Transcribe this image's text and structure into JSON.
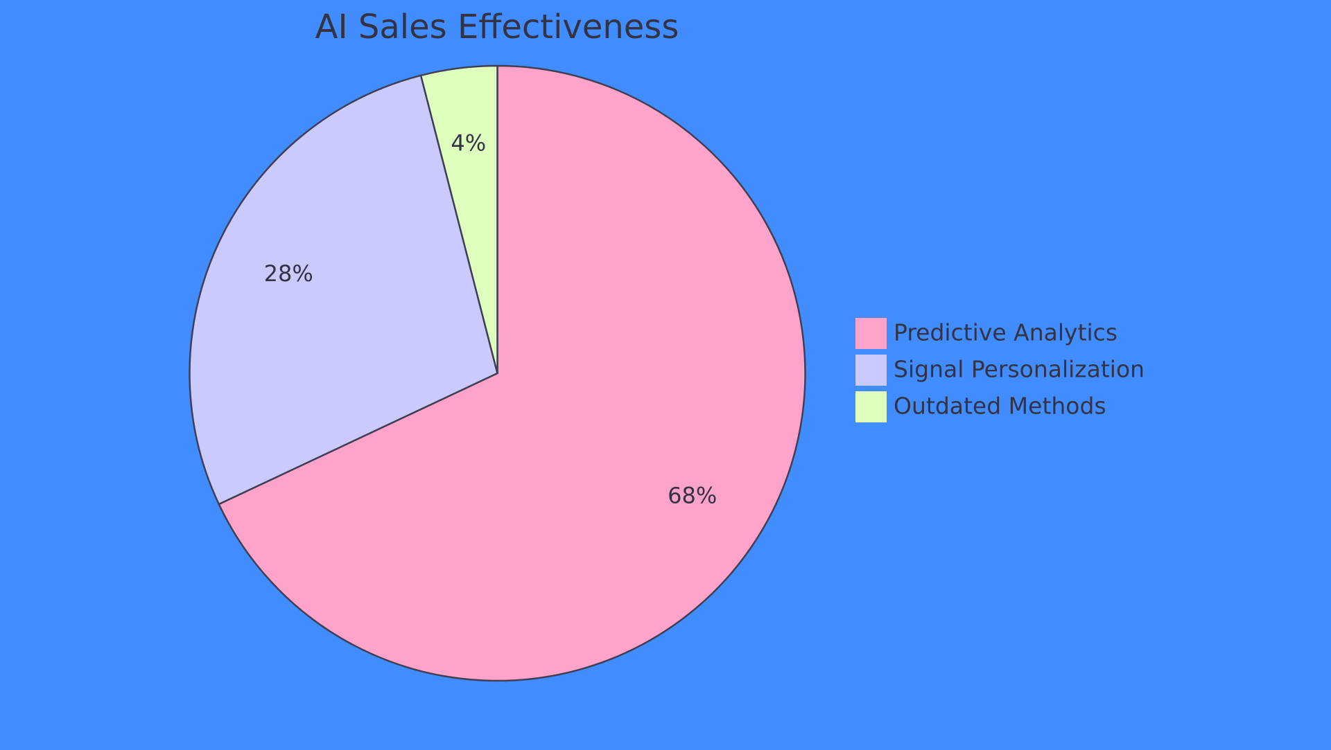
{
  "chart_data": {
    "type": "pie",
    "title": "AI Sales Effectiveness",
    "categories": [
      "Predictive Analytics",
      "Signal Personalization",
      "Outdated Methods"
    ],
    "values": [
      68,
      28,
      4
    ],
    "value_labels": [
      "68%",
      "28%",
      "4%"
    ],
    "colors": [
      "#ffa3cb",
      "#cacaff",
      "#dfffbf"
    ]
  }
}
